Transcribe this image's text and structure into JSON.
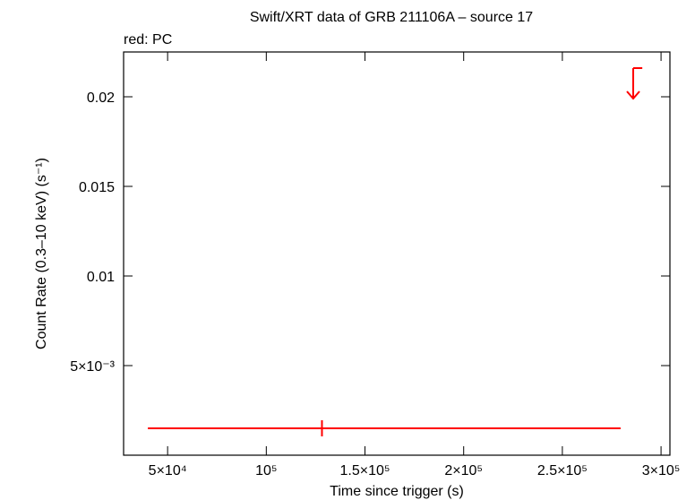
{
  "chart_data": {
    "type": "errorbar",
    "title": "Swift/XRT data of GRB 211106A – source 17",
    "subtitle": "red: PC",
    "x_label": "Time since trigger (s)",
    "y_label": "Count Rate (0.3–10 keV) (s⁻¹)",
    "xlim": [
      27700,
      304500
    ],
    "ylim": [
      0,
      0.0225
    ],
    "xticks": [
      {
        "value": 50000,
        "label": "5×10⁴"
      },
      {
        "value": 100000,
        "label": "10⁵"
      },
      {
        "value": 150000,
        "label": "1.5×10⁵"
      },
      {
        "value": 200000,
        "label": "2×10⁵"
      },
      {
        "value": 250000,
        "label": "2.5×10⁵"
      },
      {
        "value": 300000,
        "label": "3×10⁵"
      }
    ],
    "yticks": [
      {
        "value": 0.005,
        "label": "5×10⁻³"
      },
      0.01,
      0.015,
      0.02
    ],
    "series": [
      {
        "color": "#ff0000",
        "x": [
          128200
        ],
        "xerr_minus": [
          88200
        ],
        "xerr_plus": [
          151300
        ],
        "values": [
          0.0015
        ],
        "yerr": [
          0.00045
        ]
      }
    ],
    "upper_limits": {
      "color": "#ff0000",
      "x": [
        285900
      ],
      "xerr_plus": [
        4600
      ],
      "values": [
        0.0216
      ]
    }
  }
}
